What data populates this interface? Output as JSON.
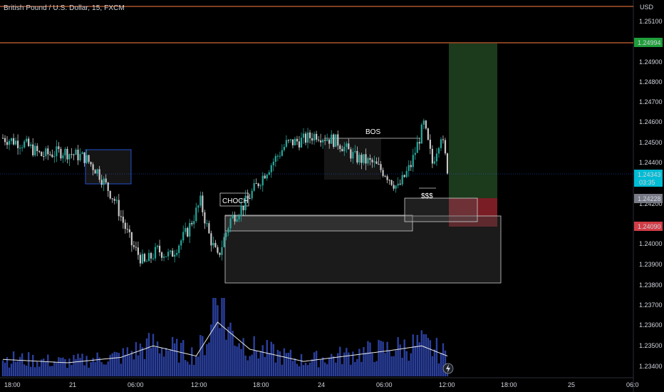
{
  "header": {
    "symbol_title": "British Pound / U.S. Dollar, 15, FXCM"
  },
  "colors": {
    "background": "#000000",
    "up_candle": "#26a69a",
    "down_candle": "#c8c8c8",
    "volume": "#2a3f9e",
    "ma_line": "#e8e8e8",
    "orange_line": "#ff7f3f",
    "blue_line": "#2962ff",
    "target_zone": "#1c3a1c",
    "stop_zone": "#7a1d24",
    "current_price_badge": "#00bcd4",
    "entry_badge": "#787b86",
    "stop_badge": "#d13d46",
    "target_badge": "#1f9e3a"
  },
  "chart_data": {
    "type": "candlestick",
    "symbol": "British Pound / U.S. Dollar",
    "timeframe": "15",
    "source": "FXCM",
    "currency": "USD",
    "ylim": [
      1.2332,
      1.2518
    ],
    "y_ticks": [
      "1.25100",
      "1.24900",
      "1.24800",
      "1.24700",
      "1.24600",
      "1.24500",
      "1.24400",
      "1.24200",
      "1.24000",
      "1.23900",
      "1.23800",
      "1.23700",
      "1.23600",
      "1.23500",
      "1.23400"
    ],
    "x_ticks": [
      "18:00",
      "21",
      "06:00",
      "12:00",
      "18:00",
      "24",
      "06:00",
      "12:00",
      "18:00",
      "25",
      "06:0"
    ],
    "price_badges": {
      "target": "1.24994",
      "current": "1.24343",
      "countdown": "03:35",
      "entry": "1.24228",
      "stop": "1.24090"
    },
    "annotations": {
      "choch": "CHOCH",
      "bos": "BOS",
      "liquidity": "$$$"
    },
    "horizontal_levels": [
      1.2518,
      1.24994
    ],
    "position": {
      "entry": 1.24228,
      "target": 1.24994,
      "stop": 1.2409,
      "current": 1.24343
    },
    "zones": [
      {
        "kind": "demand",
        "y_top": 1.2411,
        "y_bottom": 1.2382
      },
      {
        "kind": "demand",
        "y_top": 1.2411,
        "y_bottom": 1.2404
      },
      {
        "kind": "demand",
        "y_top": 1.2423,
        "y_bottom": 1.2409
      },
      {
        "kind": "supply",
        "y_top": 1.2447,
        "y_bottom": 1.2434
      },
      {
        "kind": "bos",
        "y_top": 1.2452,
        "y_bottom": 1.2436
      }
    ],
    "key_prices": [
      {
        "t": 0,
        "p": 1.245
      },
      {
        "t": 10,
        "p": 1.2447
      },
      {
        "t": 18,
        "p": 1.2441
      },
      {
        "t": 28,
        "p": 1.2443
      },
      {
        "t": 38,
        "p": 1.244
      },
      {
        "t": 44,
        "p": 1.2433
      },
      {
        "t": 52,
        "p": 1.2418
      },
      {
        "t": 60,
        "p": 1.2395
      },
      {
        "t": 66,
        "p": 1.2385
      },
      {
        "t": 72,
        "p": 1.2392
      },
      {
        "t": 78,
        "p": 1.2389
      },
      {
        "t": 86,
        "p": 1.2402
      },
      {
        "t": 92,
        "p": 1.2417
      },
      {
        "t": 96,
        "p": 1.24
      },
      {
        "t": 100,
        "p": 1.2388
      },
      {
        "t": 106,
        "p": 1.2408
      },
      {
        "t": 112,
        "p": 1.2415
      },
      {
        "t": 122,
        "p": 1.2432
      },
      {
        "t": 132,
        "p": 1.2447
      },
      {
        "t": 140,
        "p": 1.2449
      },
      {
        "t": 146,
        "p": 1.2452
      },
      {
        "t": 156,
        "p": 1.2448
      },
      {
        "t": 164,
        "p": 1.244
      },
      {
        "t": 172,
        "p": 1.2437
      },
      {
        "t": 178,
        "p": 1.2432
      },
      {
        "t": 184,
        "p": 1.2424
      },
      {
        "t": 190,
        "p": 1.2436
      },
      {
        "t": 196,
        "p": 1.2457
      },
      {
        "t": 200,
        "p": 1.2437
      },
      {
        "t": 204,
        "p": 1.2452
      },
      {
        "t": 207,
        "p": 1.24343
      }
    ],
    "volume_profile": [
      {
        "t": 0,
        "v": 25
      },
      {
        "t": 30,
        "v": 20
      },
      {
        "t": 55,
        "v": 28
      },
      {
        "t": 70,
        "v": 45
      },
      {
        "t": 90,
        "v": 30
      },
      {
        "t": 100,
        "v": 80
      },
      {
        "t": 115,
        "v": 40
      },
      {
        "t": 140,
        "v": 22
      },
      {
        "t": 160,
        "v": 30
      },
      {
        "t": 180,
        "v": 38
      },
      {
        "t": 195,
        "v": 45
      },
      {
        "t": 207,
        "v": 30
      }
    ],
    "grid": false,
    "legend": "none"
  }
}
